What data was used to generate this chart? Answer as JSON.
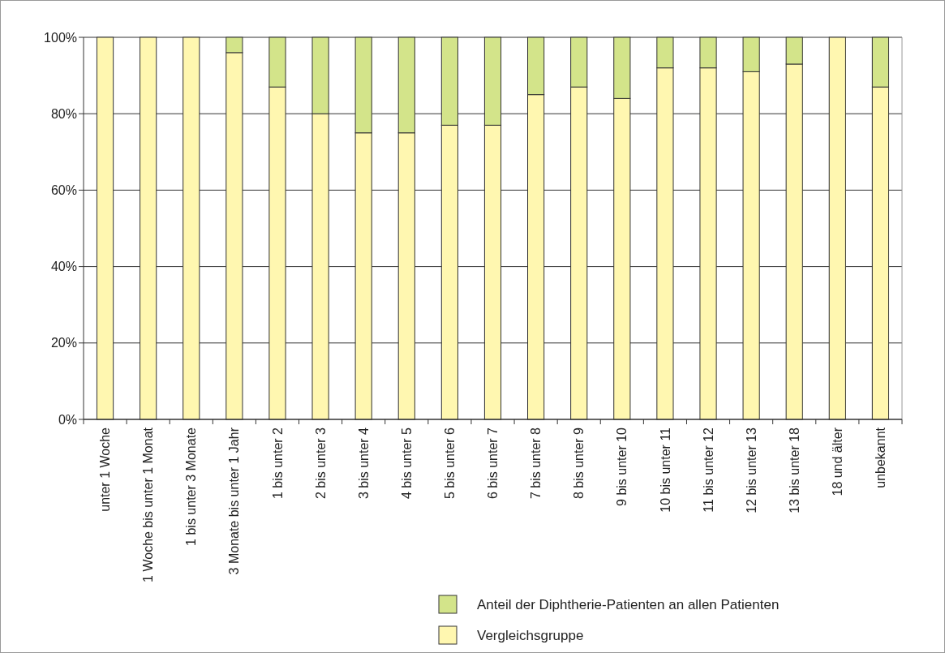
{
  "chart_data": {
    "type": "bar",
    "stacked": true,
    "categories": [
      "unter 1 Woche",
      "1 Woche bis unter 1 Monat",
      "1 bis unter 3 Monate",
      "3 Monate bis unter 1 Jahr",
      "1 bis unter 2",
      "2 bis unter 3",
      "3 bis unter 4",
      "4 bis unter 5",
      "5 bis unter 6",
      "6 bis unter 7",
      "7 bis unter 8",
      "8 bis unter 9",
      "9 bis unter 10",
      "10 bis unter 11",
      "11 bis unter 12",
      "12 bis unter 13",
      "13 bis unter 18",
      "18 und älter",
      "unbekannt"
    ],
    "series": [
      {
        "name": "Vergleichsgruppe",
        "color": "#fff7b0",
        "values": [
          100,
          100,
          100,
          96,
          87,
          80,
          75,
          75,
          77,
          77,
          85,
          87,
          84,
          92,
          92,
          91,
          93,
          100,
          87
        ]
      },
      {
        "name": "Anteil der Diphtherie-Patienten an allen Patienten",
        "color": "#d3e48a",
        "values": [
          0,
          0,
          0,
          4,
          13,
          20,
          25,
          25,
          23,
          23,
          15,
          13,
          16,
          8,
          8,
          9,
          7,
          0,
          13
        ]
      }
    ],
    "ylim": [
      0,
      100
    ],
    "yticks": [
      {
        "value": 0,
        "label": "0%"
      },
      {
        "value": 20,
        "label": "20%"
      },
      {
        "value": 40,
        "label": "40%"
      },
      {
        "value": 60,
        "label": "60%"
      },
      {
        "value": 80,
        "label": "80%"
      },
      {
        "value": 100,
        "label": "100%"
      }
    ],
    "grid": "y",
    "legend": "bottom"
  }
}
